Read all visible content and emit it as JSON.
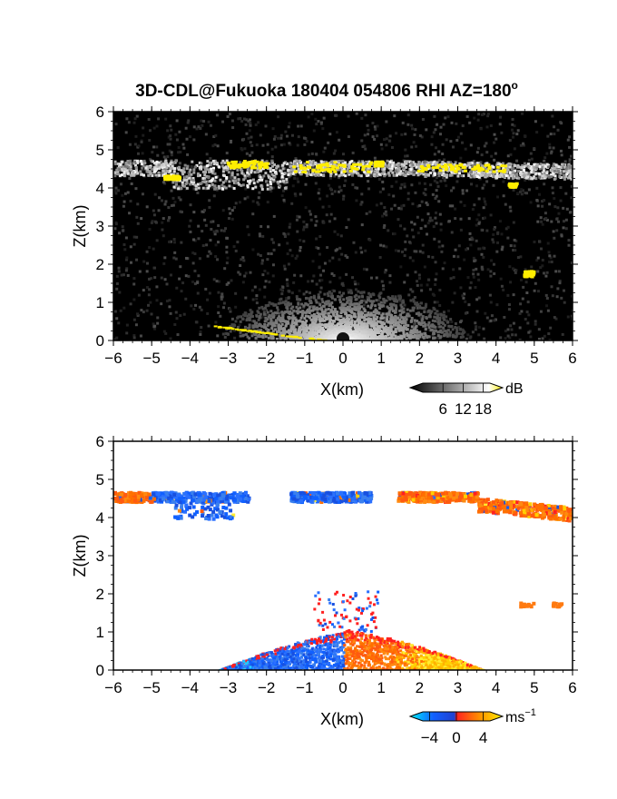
{
  "title": "3D-CDL@Fukuoka 180404 054806 RHI AZ=180",
  "title_degree": "o",
  "chart_data": [
    {
      "type": "heatmap",
      "name": "backscatter",
      "xlabel": "X(km)",
      "ylabel": "Z(km)",
      "xlim": [
        -6,
        6
      ],
      "ylim": [
        0,
        6
      ],
      "xticks": [
        "-6",
        "-5",
        "-4",
        "-3",
        "-2",
        "-1",
        "0",
        "1",
        "2",
        "3",
        "4",
        "5",
        "6"
      ],
      "yticks": [
        "0",
        "1",
        "2",
        "3",
        "4",
        "5",
        "6"
      ],
      "colorbar": {
        "unit": "dB",
        "ticks": [
          "6",
          "12",
          "18"
        ],
        "range": [
          0,
          20
        ]
      },
      "colors": {
        "background": "#000000",
        "low": "#2a2a2a",
        "high": "#ffffff",
        "saturated": "#ffee00"
      },
      "features": [
        {
          "kind": "cloud-layer",
          "x": [
            -6,
            6
          ],
          "z_top": 4.8,
          "z_base": 4.2
        },
        {
          "kind": "ground-clutter-fan",
          "x": [
            -3,
            3
          ],
          "z_max": 1.2
        }
      ]
    },
    {
      "type": "heatmap",
      "name": "doppler-velocity",
      "xlabel": "X(km)",
      "ylabel": "Z(km)",
      "xlim": [
        -6,
        6
      ],
      "ylim": [
        0,
        6
      ],
      "xticks": [
        "-6",
        "-5",
        "-4",
        "-3",
        "-2",
        "-1",
        "0",
        "1",
        "2",
        "3",
        "4",
        "5",
        "6"
      ],
      "yticks": [
        "0",
        "1",
        "2",
        "3",
        "4",
        "5",
        "6"
      ],
      "colorbar": {
        "unit": "ms",
        "unit_exp": "−1",
        "ticks": [
          "−4",
          "0",
          "4"
        ],
        "range": [
          -5,
          5
        ]
      },
      "colors": {
        "negative": "#1060ff",
        "cyan": "#00e0ff",
        "zero": "#ff2020",
        "positive": "#ffa000",
        "max": "#ffee00"
      }
    }
  ]
}
